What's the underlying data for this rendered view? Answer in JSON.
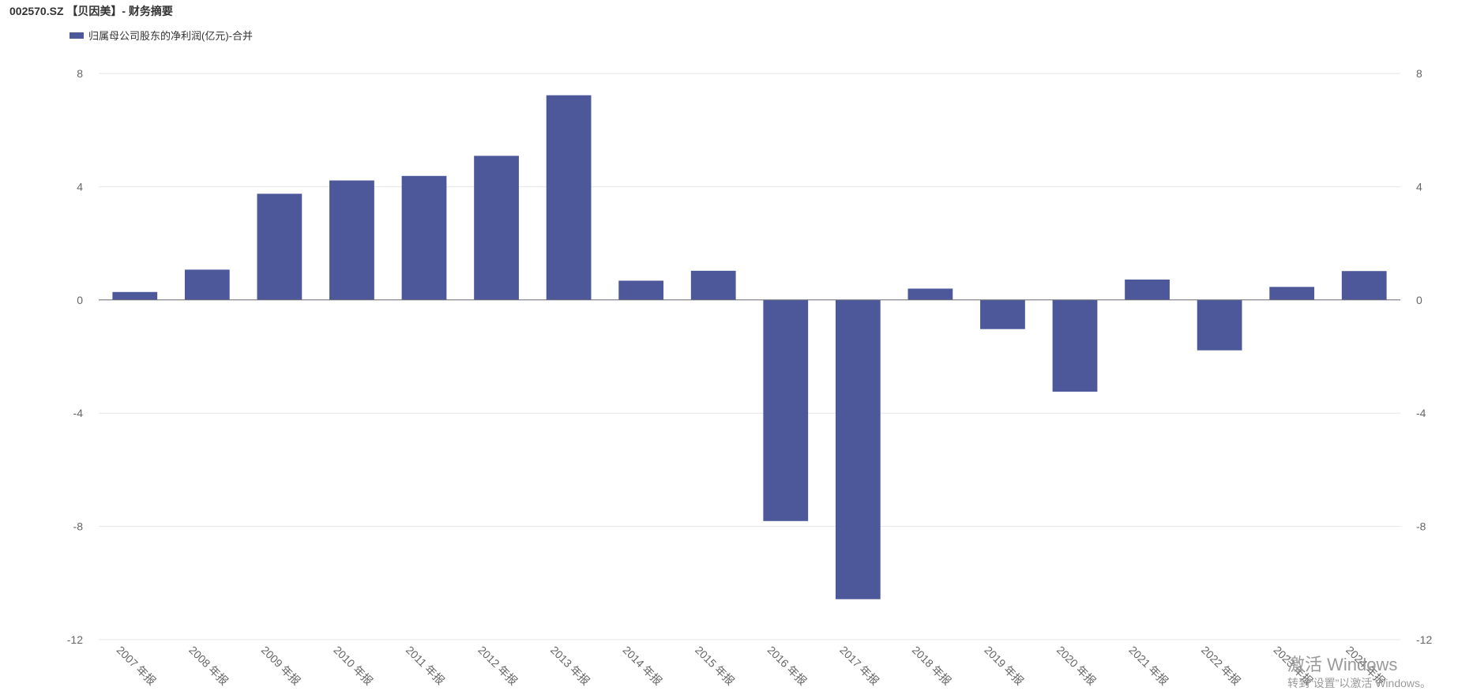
{
  "title": "002570.SZ 【贝因美】- 财务摘要",
  "legend_label": "归属母公司股东的净利润(亿元)-合并",
  "bar_color": "#4C5899",
  "watermark": {
    "line1": "激活 Windows",
    "line2": "转到“设置”以激活 Windows。"
  },
  "chart_data": {
    "type": "bar",
    "categories": [
      "2007 年报",
      "2008 年报",
      "2009 年报",
      "2010 年报",
      "2011 年报",
      "2012 年报",
      "2013 年报",
      "2014 年报",
      "2015 年报",
      "2016 年报",
      "2017 年报",
      "2018 年报",
      "2019 年报",
      "2020 年报",
      "2021 年报",
      "2022 年报",
      "2023 年报",
      "2024 年报"
    ],
    "series": [
      {
        "name": "归属母公司股东的净利润(亿元)-合并",
        "values": [
          0.28,
          1.07,
          3.75,
          4.22,
          4.38,
          5.09,
          7.23,
          0.68,
          1.03,
          -7.81,
          -10.57,
          0.4,
          -1.03,
          -3.24,
          0.72,
          -1.78,
          0.46,
          1.02
        ]
      }
    ],
    "ylim": [
      -12,
      8
    ],
    "yticks": [
      8,
      4,
      0,
      -4,
      -8,
      -12
    ],
    "grid": true,
    "legend_position": "top-left",
    "dual_y_axis": true
  }
}
